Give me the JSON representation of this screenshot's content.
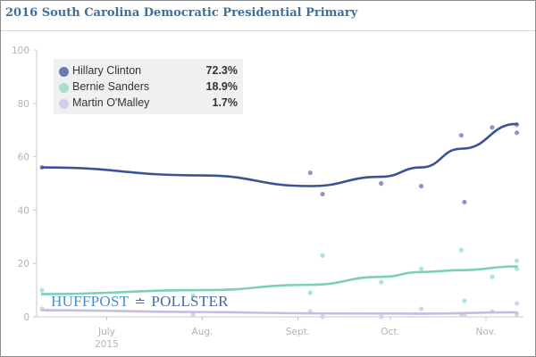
{
  "header": {
    "title": "2016 South Carolina Democratic Presidential Primary"
  },
  "watermark": {
    "left": "HUFFPOST",
    "glyph": "≐",
    "right": "POLLSTER"
  },
  "chart_data": {
    "type": "line",
    "title": "2016 South Carolina Democratic Presidential Primary",
    "xlabel": "",
    "ylabel": "",
    "ylim": [
      0,
      100
    ],
    "yticks": [
      0,
      20,
      40,
      60,
      80,
      100
    ],
    "grid": false,
    "legend_position": "top-left",
    "xlim": [
      "2015-06-10",
      "2015-11-12"
    ],
    "xticks": [
      {
        "date": "2015-07-01",
        "label": "July",
        "sublabel": "2015"
      },
      {
        "date": "2015-08-01",
        "label": "Aug.",
        "sublabel": ""
      },
      {
        "date": "2015-09-01",
        "label": "Sept.",
        "sublabel": ""
      },
      {
        "date": "2015-10-01",
        "label": "Oct.",
        "sublabel": ""
      },
      {
        "date": "2015-11-01",
        "label": "Nov.",
        "sublabel": ""
      }
    ],
    "series": [
      {
        "name": "Hillary Clinton",
        "latest": "72.3%",
        "color": "#3a5394",
        "dot_color": "#8c98c4",
        "legend_color": "#6b79b3",
        "trend": [
          {
            "x": "2015-06-10",
            "y": 56
          },
          {
            "x": "2015-08-01",
            "y": 53
          },
          {
            "x": "2015-09-05",
            "y": 49
          },
          {
            "x": "2015-09-28",
            "y": 52.5
          },
          {
            "x": "2015-10-11",
            "y": 56
          },
          {
            "x": "2015-10-24",
            "y": 63
          },
          {
            "x": "2015-11-11",
            "y": 72.3
          }
        ],
        "polls": [
          {
            "x": "2015-06-10",
            "y": 56
          },
          {
            "x": "2015-07-29",
            "y": 78
          },
          {
            "x": "2015-09-05",
            "y": 54
          },
          {
            "x": "2015-09-09",
            "y": 46
          },
          {
            "x": "2015-09-28",
            "y": 50
          },
          {
            "x": "2015-10-11",
            "y": 49
          },
          {
            "x": "2015-10-24",
            "y": 68
          },
          {
            "x": "2015-10-25",
            "y": 43
          },
          {
            "x": "2015-11-03",
            "y": 71
          },
          {
            "x": "2015-11-11",
            "y": 72
          },
          {
            "x": "2015-11-11",
            "y": 69
          }
        ]
      },
      {
        "name": "Bernie Sanders",
        "latest": "18.9%",
        "color": "#7ccfb9",
        "dot_color": "#b2e3d6",
        "legend_color": "#a8ded0",
        "trend": [
          {
            "x": "2015-06-10",
            "y": 8.5
          },
          {
            "x": "2015-08-01",
            "y": 10
          },
          {
            "x": "2015-09-05",
            "y": 12
          },
          {
            "x": "2015-09-28",
            "y": 15
          },
          {
            "x": "2015-10-11",
            "y": 16.8
          },
          {
            "x": "2015-10-24",
            "y": 17.5
          },
          {
            "x": "2015-11-11",
            "y": 18.9
          }
        ],
        "polls": [
          {
            "x": "2015-06-10",
            "y": 10
          },
          {
            "x": "2015-07-29",
            "y": 8
          },
          {
            "x": "2015-09-05",
            "y": 9
          },
          {
            "x": "2015-09-09",
            "y": 23
          },
          {
            "x": "2015-09-28",
            "y": 13
          },
          {
            "x": "2015-10-11",
            "y": 18
          },
          {
            "x": "2015-10-24",
            "y": 25
          },
          {
            "x": "2015-10-25",
            "y": 6
          },
          {
            "x": "2015-11-03",
            "y": 15
          },
          {
            "x": "2015-11-11",
            "y": 21
          },
          {
            "x": "2015-11-11",
            "y": 18
          }
        ]
      },
      {
        "name": "Martin O'Malley",
        "latest": "1.7%",
        "color": "#c3bde0",
        "dot_color": "#d7d3ec",
        "legend_color": "#d3cfe8",
        "trend": [
          {
            "x": "2015-06-10",
            "y": 2.5
          },
          {
            "x": "2015-08-01",
            "y": 1.8
          },
          {
            "x": "2015-09-05",
            "y": 1.3
          },
          {
            "x": "2015-10-11",
            "y": 1.2
          },
          {
            "x": "2015-11-11",
            "y": 1.7
          }
        ],
        "polls": [
          {
            "x": "2015-06-10",
            "y": 3
          },
          {
            "x": "2015-07-29",
            "y": 1
          },
          {
            "x": "2015-09-05",
            "y": 2
          },
          {
            "x": "2015-09-09",
            "y": 0
          },
          {
            "x": "2015-09-28",
            "y": 0
          },
          {
            "x": "2015-10-11",
            "y": 3
          },
          {
            "x": "2015-10-24",
            "y": 1
          },
          {
            "x": "2015-10-25",
            "y": 1
          },
          {
            "x": "2015-11-03",
            "y": 2
          },
          {
            "x": "2015-11-11",
            "y": 5
          },
          {
            "x": "2015-11-11",
            "y": 1
          }
        ]
      }
    ]
  }
}
